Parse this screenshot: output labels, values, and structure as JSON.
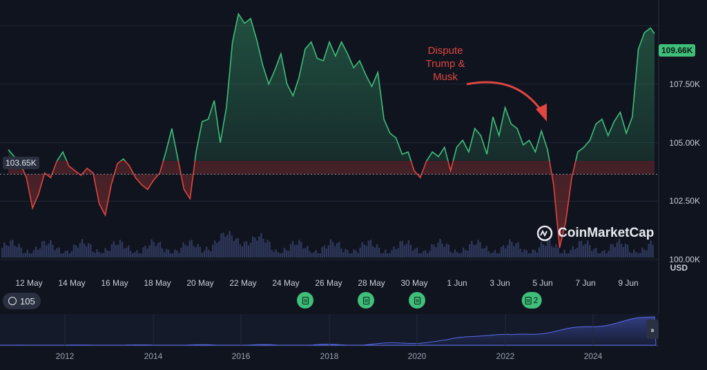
{
  "chart_data": {
    "type": "line",
    "x_labels": [
      "12 May",
      "14 May",
      "16 May",
      "18 May",
      "20 May",
      "22 May",
      "24 May",
      "26 May",
      "28 May",
      "30 May",
      "1 Jun",
      "3 Jun",
      "5 Jun",
      "7 Jun",
      "9 Jun"
    ],
    "y_ticks": [
      "100.00K",
      "102.50K",
      "105.00K",
      "107.50K"
    ],
    "ylim": [
      99500,
      110800
    ],
    "currency_label": "USD",
    "baseline": {
      "value": 103650,
      "label": "103.65K"
    },
    "current": {
      "value": 109660,
      "label": "109.66K"
    },
    "annotation": "Dispute\nTrump &\nMusk",
    "watermark": "CoinMarketCap",
    "history_badge": "105",
    "news": [
      {
        "label": "",
        "date": "25 May"
      },
      {
        "label": "",
        "date": "28 May"
      },
      {
        "label": "",
        "date": "30 May"
      },
      {
        "label": "2",
        "date": "5 Jun"
      }
    ],
    "navigator_years": [
      "2012",
      "2014",
      "2016",
      "2018",
      "2020",
      "2022",
      "2024"
    ],
    "series": [
      {
        "points": [
          [
            0,
            104700
          ],
          [
            0.3,
            104400
          ],
          [
            0.6,
            104100
          ],
          [
            0.9,
            103500
          ],
          [
            1.2,
            102200
          ],
          [
            1.5,
            102800
          ],
          [
            1.8,
            103700
          ],
          [
            2.1,
            103500
          ],
          [
            2.4,
            104200
          ],
          [
            2.7,
            104600
          ],
          [
            3.0,
            104000
          ],
          [
            3.3,
            103800
          ],
          [
            3.6,
            103600
          ],
          [
            3.9,
            103900
          ],
          [
            4.2,
            103700
          ],
          [
            4.5,
            102400
          ],
          [
            4.8,
            101900
          ],
          [
            5.1,
            103200
          ],
          [
            5.4,
            104100
          ],
          [
            5.7,
            104300
          ],
          [
            6.0,
            104000
          ],
          [
            6.3,
            103500
          ],
          [
            6.6,
            103200
          ],
          [
            6.9,
            103000
          ],
          [
            7.2,
            103400
          ],
          [
            7.5,
            103700
          ],
          [
            7.8,
            104600
          ],
          [
            8.1,
            105600
          ],
          [
            8.4,
            104300
          ],
          [
            8.7,
            103000
          ],
          [
            9.0,
            102600
          ],
          [
            9.3,
            104600
          ],
          [
            9.6,
            105900
          ],
          [
            9.9,
            106000
          ],
          [
            10.2,
            106800
          ],
          [
            10.5,
            105000
          ],
          [
            10.8,
            106500
          ],
          [
            11.1,
            109300
          ],
          [
            11.4,
            110500
          ],
          [
            11.7,
            110100
          ],
          [
            12.0,
            110300
          ],
          [
            12.3,
            109400
          ],
          [
            12.6,
            108300
          ],
          [
            12.9,
            107500
          ],
          [
            13.2,
            108100
          ],
          [
            13.5,
            108800
          ],
          [
            13.8,
            107500
          ],
          [
            14.1,
            107000
          ],
          [
            14.4,
            107800
          ],
          [
            14.7,
            109000
          ],
          [
            15.0,
            109300
          ],
          [
            15.3,
            108600
          ],
          [
            15.6,
            108500
          ],
          [
            15.9,
            109300
          ],
          [
            16.2,
            108700
          ],
          [
            16.5,
            109300
          ],
          [
            16.8,
            108800
          ],
          [
            17.1,
            108200
          ],
          [
            17.4,
            108500
          ],
          [
            17.7,
            107900
          ],
          [
            18.0,
            107400
          ],
          [
            18.3,
            108000
          ],
          [
            18.6,
            106000
          ],
          [
            18.9,
            105400
          ],
          [
            19.2,
            105200
          ],
          [
            19.5,
            104500
          ],
          [
            19.8,
            104600
          ],
          [
            20.1,
            103800
          ],
          [
            20.4,
            103500
          ],
          [
            20.7,
            104200
          ],
          [
            21.0,
            104600
          ],
          [
            21.3,
            104400
          ],
          [
            21.6,
            104800
          ],
          [
            21.9,
            103800
          ],
          [
            22.2,
            104800
          ],
          [
            22.5,
            105100
          ],
          [
            22.8,
            104600
          ],
          [
            23.1,
            105600
          ],
          [
            23.4,
            105300
          ],
          [
            23.7,
            104500
          ],
          [
            24.0,
            106100
          ],
          [
            24.3,
            105300
          ],
          [
            24.6,
            106500
          ],
          [
            24.9,
            105800
          ],
          [
            25.2,
            105600
          ],
          [
            25.5,
            104900
          ],
          [
            25.8,
            105100
          ],
          [
            26.1,
            104600
          ],
          [
            26.4,
            105500
          ],
          [
            26.7,
            104700
          ],
          [
            27.0,
            103200
          ],
          [
            27.3,
            100500
          ],
          [
            27.6,
            101600
          ],
          [
            27.9,
            103500
          ],
          [
            28.2,
            104600
          ],
          [
            28.5,
            104800
          ],
          [
            28.8,
            105100
          ],
          [
            29.1,
            105800
          ],
          [
            29.4,
            106000
          ],
          [
            29.7,
            105300
          ],
          [
            30.0,
            105900
          ],
          [
            30.3,
            106300
          ],
          [
            30.6,
            105400
          ],
          [
            30.9,
            106100
          ],
          [
            31.2,
            109000
          ],
          [
            31.5,
            109700
          ],
          [
            31.8,
            109900
          ],
          [
            32.0,
            109660
          ]
        ]
      }
    ]
  }
}
